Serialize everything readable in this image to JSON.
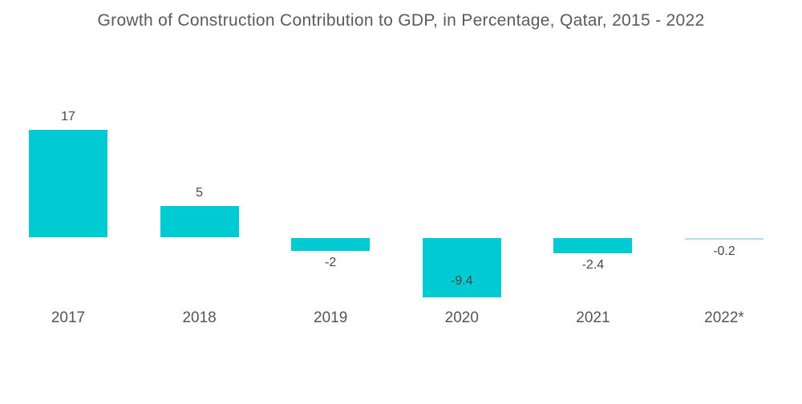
{
  "chart_data": {
    "type": "bar",
    "title": "Growth of Construction Contribution to GDP, in Percentage, Qatar, 2015 - 2022",
    "categories": [
      "2017",
      "2018",
      "2019",
      "2020",
      "2021",
      "2022*"
    ],
    "values": [
      17,
      5,
      -2,
      -9.4,
      -2.4,
      -0.2
    ],
    "value_labels": [
      "17",
      "5",
      "-2",
      "-9.4",
      "-2.4",
      "-0.2"
    ],
    "point_colors": [
      "#00CBD2",
      "#00CBD2",
      "#00CBD2",
      "#00CBD2",
      "#00CBD2",
      "#AEE0EC"
    ],
    "xlabel": "",
    "ylabel": "",
    "ylim": [
      -10,
      18
    ],
    "grid": false,
    "legend": false,
    "axis_lines": false
  },
  "colors": {
    "background": "#ffffff",
    "bar": "#00CBD2",
    "bar_last_thin": "#AEE0EC",
    "title_text": "#5a5b5e",
    "value_text": "#47484a",
    "axis_text": "#54555a"
  }
}
